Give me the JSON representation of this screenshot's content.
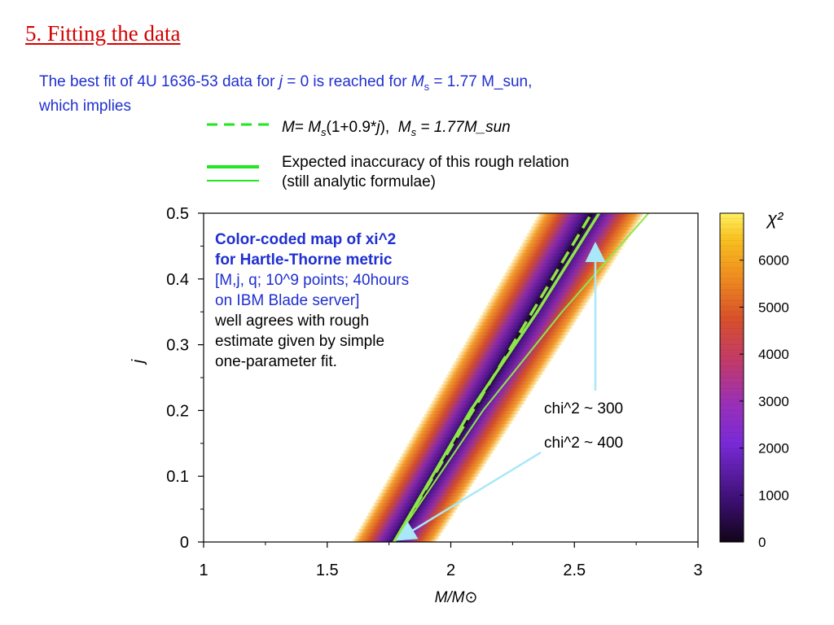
{
  "slide": {
    "title": "5. Fitting the data",
    "intro_line1_a": "The best fit of 4U 1636-53 data for ",
    "intro_j": "j",
    "intro_line1_b": " = 0 is reached for ",
    "intro_M": "M",
    "intro_sub": "s",
    "intro_line1_c": " = 1.77 M_sun,",
    "intro_line2": "which implies"
  },
  "legend": {
    "dashed_label_M": "M",
    "dashed_label_eq": "= ",
    "dashed_label_Ms": "M",
    "dashed_label_s": "s",
    "dashed_label_mid": "(1+0.9*",
    "dashed_label_j": "j",
    "dashed_label_end": "),",
    "dashed_label_Ms2": "M",
    "dashed_label_s2": "s",
    "dashed_label_val": " = 1.77M_sun",
    "solid_label_1": "Expected inaccuracy of this rough  relation",
    "solid_label_2": "(still analytic formulae)",
    "line_color": "#8ee64a",
    "legend_line_color": "#22e622"
  },
  "annotation": {
    "line1": "Color-coded map of xi^2",
    "line2": "for Hartle-Thorne metric",
    "line3": "[M,j, q; 10^9 points; 40hours",
    "line4": "on IBM Blade server]",
    "line5": "well agrees with rough",
    "line6": "estimate given by simple",
    "line7": "one-parameter fit."
  },
  "callouts": {
    "chi300": "chi^2 ~ 300",
    "chi400": "chi^2 ~ 400",
    "arrow_color": "#a8e8f8"
  },
  "chart_data": {
    "type": "heatmap",
    "xlabel": "M/M⊙",
    "ylabel": "j",
    "xlim": [
      1,
      3
    ],
    "ylim": [
      0,
      0.5
    ],
    "x_ticks": [
      "1",
      "1.5",
      "2",
      "2.5",
      "3"
    ],
    "y_ticks": [
      "0",
      "0.1",
      "0.2",
      "0.3",
      "0.4",
      "0.5"
    ],
    "colorbar_label": "χ²",
    "colorbar_ticks": [
      "0",
      "1000",
      "2000",
      "3000",
      "4000",
      "5000",
      "6000"
    ],
    "colorbar_range": [
      0,
      7000
    ],
    "band": {
      "min_chi2_curve": [
        {
          "j": 0.0,
          "M": 1.77
        },
        {
          "j": 0.1,
          "M": 1.93
        },
        {
          "j": 0.2,
          "M": 2.09
        },
        {
          "j": 0.3,
          "M": 2.25
        },
        {
          "j": 0.4,
          "M": 2.41
        },
        {
          "j": 0.5,
          "M": 2.57
        }
      ],
      "colored_half_width_M": 0.17
    },
    "fit_lines": [
      {
        "name": "M= Ms(1+0.9*j)",
        "style": "dashed",
        "points": [
          [
            1.77,
            0
          ],
          [
            2.57,
            0.5
          ]
        ]
      },
      {
        "name": "upper inaccuracy",
        "style": "solid",
        "points": [
          [
            1.77,
            0
          ],
          [
            2.08,
            0.2
          ],
          [
            2.35,
            0.35
          ],
          [
            2.6,
            0.5
          ]
        ]
      },
      {
        "name": "lower inaccuracy",
        "style": "solid",
        "points": [
          [
            1.77,
            0
          ],
          [
            2.13,
            0.2
          ],
          [
            2.45,
            0.35
          ],
          [
            2.8,
            0.5
          ]
        ]
      }
    ]
  }
}
